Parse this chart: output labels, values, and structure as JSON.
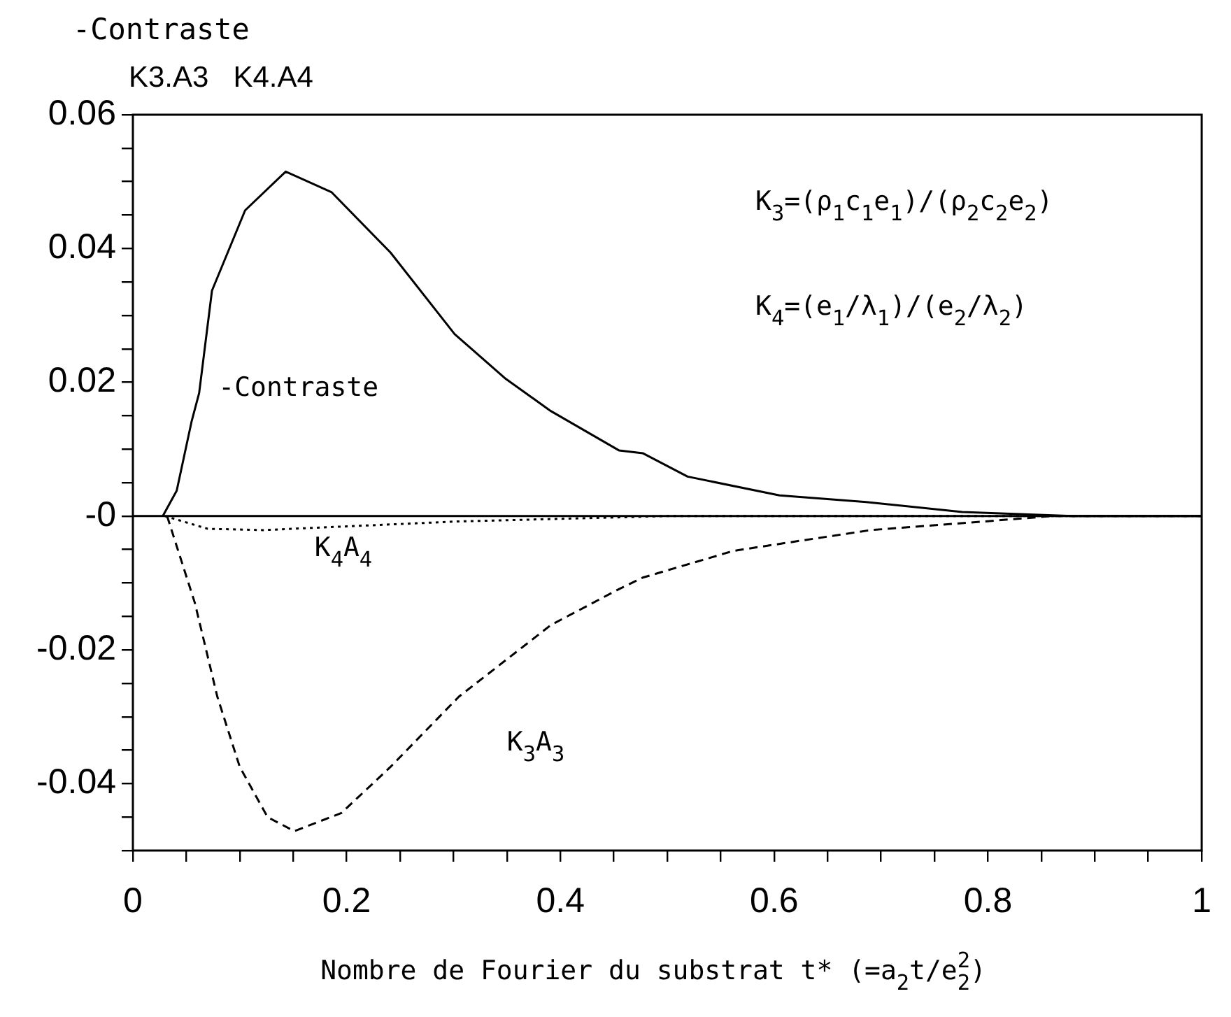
{
  "chart_data": {
    "type": "line",
    "title": "-Contraste",
    "subtitle": "K3.A3   K4.A4",
    "xlabel": "Nombre de Fourier du substrat t* (=a$_{2}$t/e$_{2}$$^{2}$)",
    "xlim": [
      0,
      1
    ],
    "ylim": [
      -0.05,
      0.06
    ],
    "xticks": [
      0,
      {
        "value": 0.05,
        "label": null
      },
      0.2,
      {
        "value": 0.1,
        "label": null
      },
      {
        "value": 0.15,
        "label": null
      },
      {
        "value": 0.25,
        "label": null
      },
      {
        "value": 0.3,
        "label": null
      },
      {
        "value": 0.35,
        "label": null
      },
      0.4,
      {
        "value": 0.45,
        "label": null
      },
      {
        "value": 0.5,
        "label": null
      },
      {
        "value": 0.55,
        "label": null
      },
      0.6,
      {
        "value": 0.65,
        "label": null
      },
      {
        "value": 0.7,
        "label": null
      },
      {
        "value": 0.75,
        "label": null
      },
      0.8,
      {
        "value": 0.85,
        "label": null
      },
      {
        "value": 0.9,
        "label": null
      },
      {
        "value": 0.95,
        "label": null
      },
      1
    ],
    "yticks": [
      {
        "value": -0.05,
        "label": null
      },
      {
        "value": -0.045,
        "label": null
      },
      -0.04,
      {
        "value": -0.035,
        "label": null
      },
      {
        "value": -0.03,
        "label": null
      },
      {
        "value": -0.025,
        "label": null
      },
      -0.02,
      {
        "value": -0.015,
        "label": null
      },
      {
        "value": -0.01,
        "label": null
      },
      {
        "value": -0.005,
        "label": null
      },
      {
        "value": 0,
        "label": "-0"
      },
      {
        "value": 0.005,
        "label": null
      },
      {
        "value": 0.01,
        "label": null
      },
      {
        "value": 0.015,
        "label": null
      },
      0.02,
      {
        "value": 0.025,
        "label": null
      },
      {
        "value": 0.03,
        "label": null
      },
      {
        "value": 0.035,
        "label": null
      },
      0.04,
      {
        "value": 0.045,
        "label": null
      },
      {
        "value": 0.05,
        "label": null
      },
      {
        "value": 0.055,
        "label": null
      },
      0.06
    ],
    "grid": false,
    "legend": false,
    "marker": "none",
    "series": [
      {
        "color": "#000000",
        "line_style": "solid",
        "x": [
          0.028,
          0.041,
          0.055,
          0.062,
          0.074,
          0.105,
          0.143,
          0.186,
          0.241,
          0.301,
          0.349,
          0.391,
          0.455,
          0.477,
          0.519,
          0.605,
          0.686,
          0.776,
          0.88,
          1
        ],
        "values": [
          0,
          0.0038,
          0.0142,
          0.0184,
          0.0337,
          0.0457,
          0.0515,
          0.0484,
          0.0394,
          0.0272,
          0.0205,
          0.0157,
          0.0098,
          0.0094,
          0.0059,
          0.0031,
          0.0021,
          0.0006,
          0,
          0
        ]
      },
      {
        "color": "#000000",
        "line_style": "dashed",
        "x": [
          0.032,
          0.058,
          0.079,
          0.1,
          0.126,
          0.151,
          0.195,
          0.241,
          0.305,
          0.391,
          0.455,
          0.477,
          0.562,
          0.69,
          0.797,
          0.86,
          1
        ],
        "values": [
          0,
          -0.013,
          -0.027,
          -0.0375,
          -0.045,
          -0.0471,
          -0.0444,
          -0.0375,
          -0.027,
          -0.0163,
          -0.0109,
          -0.0092,
          -0.0052,
          -0.0021,
          -0.0008,
          0,
          0
        ]
      },
      {
        "color": "#000000",
        "line_style": "dotted",
        "x": [
          0.03,
          0.07,
          0.122,
          0.177,
          0.305,
          0.5,
          1
        ],
        "values": [
          0,
          -0.0019,
          -0.0021,
          -0.0017,
          -0.0008,
          0,
          0
        ]
      }
    ],
    "ref_lines": [
      {
        "axis": "y",
        "value": 0,
        "color": "#000000",
        "line_style": "solid"
      }
    ],
    "annotations": [
      "-Contraste",
      "K$_{4}$A$_{4}$",
      "K$_{3}$A$_{3}$",
      "K$_{3}$=(ρ$_{1}$c$_{1}$e$_{1}$)/(ρ$_{2}$c$_{2}$e$_{2}$)",
      "K$_{4}$=(e$_{1}$/λ$_{1}$)/(e$_{2}$/λ$_{2}$)"
    ]
  }
}
